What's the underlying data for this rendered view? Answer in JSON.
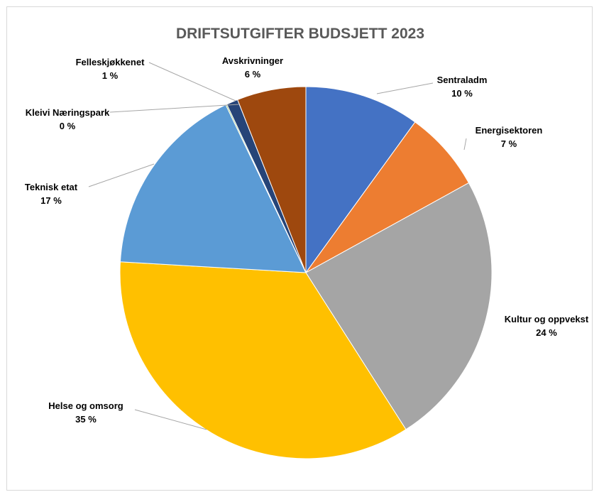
{
  "chart_data": {
    "type": "pie",
    "title": "DRIFTSUTGIFTER BUDSJETT 2023",
    "slices": [
      {
        "label": "Sentraladm",
        "value": 10,
        "value_label": "10 %",
        "color": "#4472C4"
      },
      {
        "label": "Energisektoren",
        "value": 7,
        "value_label": "7 %",
        "color": "#ED7D31"
      },
      {
        "label": "Kultur og oppvekst",
        "value": 24,
        "value_label": "24 %",
        "color": "#A5A5A5"
      },
      {
        "label": "Helse og omsorg",
        "value": 35,
        "value_label": "35 %",
        "color": "#FFC000"
      },
      {
        "label": "Teknisk etat",
        "value": 17,
        "value_label": "17 %",
        "color": "#5B9BD5"
      },
      {
        "label": "Kleivi Næringspark",
        "value": 0.1,
        "value_label": "0 %",
        "color": "#70AD47"
      },
      {
        "label": "Felleskjøkkenet",
        "value": 1,
        "value_label": "1 %",
        "color": "#264478"
      },
      {
        "label": "Avskrivninger",
        "value": 6,
        "value_label": "6 %",
        "color": "#9E480E"
      }
    ],
    "start_angle_deg": 0,
    "direction": "clockwise",
    "legend": "none",
    "data_labels": "category name and percentage, outside end with leader lines"
  }
}
